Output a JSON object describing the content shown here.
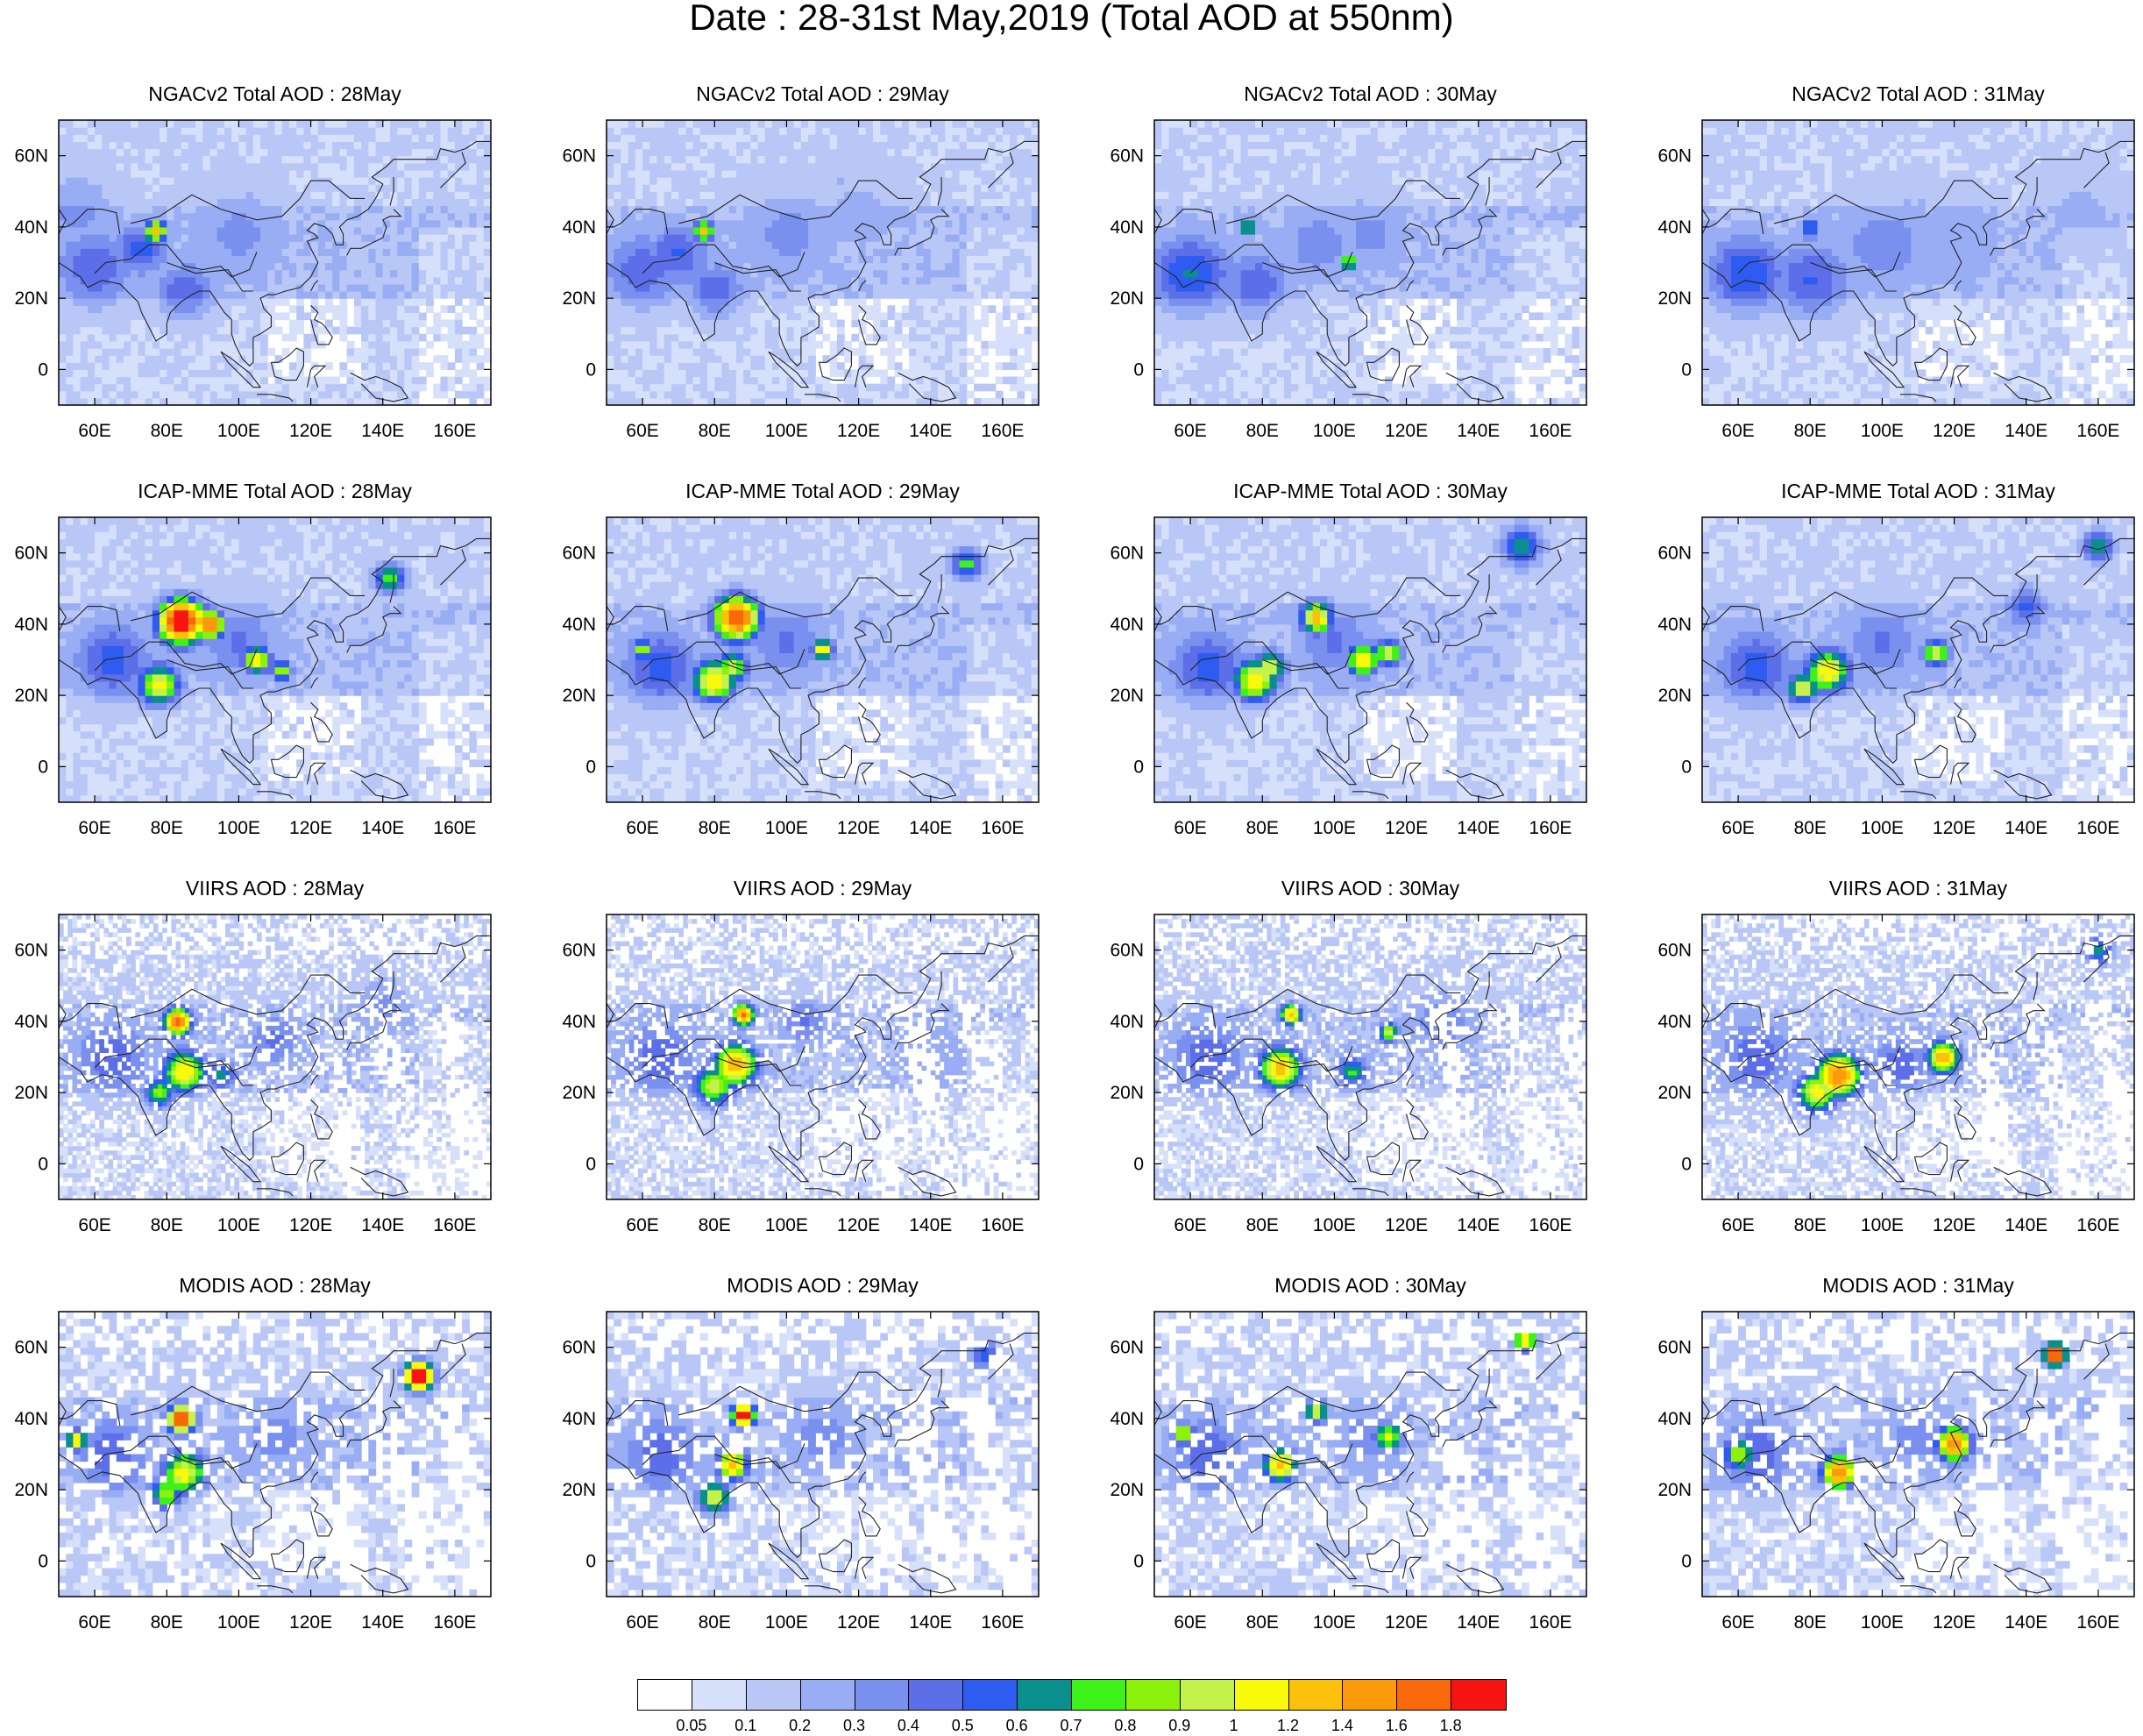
{
  "title": "Date : 28-31st May,2019 (Total AOD at 550nm)",
  "axes": {
    "lat_ticks": [
      "60N",
      "40N",
      "20N",
      "0"
    ],
    "lat_values": [
      60,
      40,
      20,
      0
    ],
    "lon_ticks": [
      "60E",
      "80E",
      "100E",
      "120E",
      "140E",
      "160E"
    ],
    "lon_values": [
      60,
      80,
      100,
      120,
      140,
      160
    ],
    "lon_range": [
      50,
      170
    ],
    "lat_range": [
      -10,
      70
    ]
  },
  "rows": [
    {
      "product": "NGACv2 Total AOD",
      "dataset_key": "ngac"
    },
    {
      "product": "ICAP-MME Total AOD",
      "dataset_key": "icap"
    },
    {
      "product": "VIIRS AOD",
      "dataset_key": "viirs"
    },
    {
      "product": "MODIS AOD",
      "dataset_key": "modis"
    }
  ],
  "dates": [
    "28May",
    "29May",
    "30May",
    "31May"
  ],
  "panel_titles": [
    [
      "NGACv2 Total AOD : 28May",
      "NGACv2 Total AOD : 29May",
      "NGACv2 Total AOD : 30May",
      "NGACv2 Total AOD : 31May"
    ],
    [
      "ICAP-MME Total AOD : 28May",
      "ICAP-MME Total AOD : 29May",
      "ICAP-MME Total AOD : 30May",
      "ICAP-MME Total AOD : 31May"
    ],
    [
      "VIIRS AOD : 28May",
      "VIIRS AOD : 29May",
      "VIIRS AOD : 30May",
      "VIIRS AOD : 31May"
    ],
    [
      "MODIS AOD : 28May",
      "MODIS AOD : 29May",
      "MODIS AOD : 30May",
      "MODIS AOD : 31May"
    ]
  ],
  "colorbar": {
    "labels": [
      "0.05",
      "0.1",
      "0.2",
      "0.3",
      "0.4",
      "0.5",
      "0.6",
      "0.7",
      "0.8",
      "0.9",
      "1",
      "1.2",
      "1.4",
      "1.6",
      "1.8"
    ],
    "colors": [
      "#ffffff",
      "#d7e0fb",
      "#b9c7f7",
      "#98adf4",
      "#7a90ef",
      "#5c6fe9",
      "#2f5cf0",
      "#0a8f8f",
      "#3cf218",
      "#8cf20c",
      "#c4f24b",
      "#f9f90a",
      "#fcc10a",
      "#fb9a0a",
      "#f9680a",
      "#f91414"
    ]
  },
  "hotspots": {
    "ngac": [
      [
        [
          77,
          39,
          2.0,
          0.95
        ],
        [
          73,
          34,
          5,
          0.35
        ],
        [
          60,
          28,
          8,
          0.3
        ],
        [
          85,
          22,
          6,
          0.3
        ],
        [
          100,
          38,
          10,
          0.18
        ],
        [
          55,
          45,
          8,
          0.18
        ]
      ],
      [
        [
          77,
          39,
          1.8,
          0.85
        ],
        [
          70,
          33,
          6,
          0.3
        ],
        [
          60,
          28,
          8,
          0.3
        ],
        [
          80,
          22,
          6,
          0.3
        ],
        [
          100,
          38,
          10,
          0.18
        ],
        [
          120,
          45,
          10,
          0.12
        ]
      ],
      [
        [
          76,
          40,
          1.5,
          0.65
        ],
        [
          104,
          30,
          1.6,
          0.65
        ],
        [
          60,
          27,
          8,
          0.4
        ],
        [
          78,
          24,
          7,
          0.3
        ],
        [
          95,
          35,
          8,
          0.2
        ],
        [
          110,
          38,
          8,
          0.18
        ]
      ],
      [
        [
          80,
          40,
          2.0,
          0.45
        ],
        [
          62,
          27,
          8,
          0.38
        ],
        [
          80,
          25,
          8,
          0.32
        ],
        [
          100,
          35,
          10,
          0.2
        ],
        [
          120,
          35,
          10,
          0.15
        ],
        [
          155,
          45,
          8,
          0.12
        ]
      ]
    ],
    "icap": [
      [
        [
          84,
          41,
          4,
          1.7
        ],
        [
          92,
          40,
          2.5,
          1.2
        ],
        [
          78,
          23,
          4,
          0.75
        ],
        [
          105,
          30,
          2.5,
          0.8
        ],
        [
          112,
          27,
          2,
          0.7
        ],
        [
          142,
          53,
          3,
          0.6
        ],
        [
          65,
          30,
          8,
          0.35
        ],
        [
          100,
          35,
          8,
          0.25
        ]
      ],
      [
        [
          86,
          42,
          4,
          1.4
        ],
        [
          80,
          24,
          4,
          0.85
        ],
        [
          85,
          28,
          3,
          0.7
        ],
        [
          110,
          33,
          2,
          0.8
        ],
        [
          150,
          57,
          3,
          0.55
        ],
        [
          60,
          33,
          2,
          0.6
        ],
        [
          65,
          28,
          8,
          0.35
        ],
        [
          100,
          35,
          8,
          0.25
        ]
      ],
      [
        [
          95,
          42,
          3,
          0.9
        ],
        [
          78,
          24,
          4,
          0.8
        ],
        [
          82,
          28,
          3,
          0.75
        ],
        [
          108,
          30,
          3,
          0.8
        ],
        [
          115,
          32,
          2.5,
          0.75
        ],
        [
          152,
          62,
          4,
          0.5
        ],
        [
          65,
          28,
          8,
          0.35
        ],
        [
          100,
          35,
          8,
          0.25
        ]
      ],
      [
        [
          85,
          27,
          4,
          0.85
        ],
        [
          78,
          22,
          3,
          0.7
        ],
        [
          115,
          32,
          2.5,
          0.75
        ],
        [
          160,
          62,
          3,
          0.5
        ],
        [
          140,
          45,
          4,
          0.35
        ],
        [
          65,
          28,
          8,
          0.35
        ],
        [
          100,
          35,
          8,
          0.25
        ]
      ]
    ],
    "viirs": [
      [
        [
          83,
          40,
          2.5,
          1.3
        ],
        [
          85,
          26,
          4,
          0.85
        ],
        [
          78,
          20,
          3,
          0.6
        ],
        [
          95,
          25,
          3,
          0.45
        ],
        [
          110,
          35,
          6,
          0.25
        ],
        [
          65,
          30,
          8,
          0.3
        ],
        [
          140,
          45,
          6,
          0.2
        ]
      ],
      [
        [
          88,
          42,
          2,
          1.2
        ],
        [
          86,
          28,
          4,
          1.0
        ],
        [
          80,
          22,
          4,
          0.7
        ],
        [
          105,
          40,
          5,
          0.25
        ],
        [
          65,
          30,
          8,
          0.3
        ],
        [
          140,
          30,
          8,
          0.15
        ]
      ],
      [
        [
          88,
          42,
          2,
          1.0
        ],
        [
          85,
          27,
          4,
          0.95
        ],
        [
          115,
          37,
          2,
          0.7
        ],
        [
          105,
          26,
          3,
          0.5
        ],
        [
          65,
          30,
          8,
          0.3
        ],
        [
          130,
          40,
          8,
          0.2
        ]
      ],
      [
        [
          88,
          25,
          4,
          1.15
        ],
        [
          82,
          20,
          4,
          0.8
        ],
        [
          117,
          30,
          3,
          1.0
        ],
        [
          160,
          60,
          3,
          0.5
        ],
        [
          65,
          30,
          8,
          0.3
        ],
        [
          105,
          28,
          6,
          0.3
        ]
      ]
    ],
    "modis": [
      [
        [
          84,
          40,
          2.5,
          1.5
        ],
        [
          150,
          52,
          2.5,
          1.85
        ],
        [
          55,
          34,
          2,
          0.8
        ],
        [
          85,
          25,
          4,
          0.8
        ],
        [
          80,
          19,
          3,
          0.7
        ],
        [
          65,
          30,
          8,
          0.3
        ],
        [
          110,
          35,
          8,
          0.2
        ]
      ],
      [
        [
          88,
          41,
          2,
          1.6
        ],
        [
          85,
          27,
          3,
          0.9
        ],
        [
          80,
          18,
          3,
          0.8
        ],
        [
          65,
          30,
          8,
          0.3
        ],
        [
          110,
          35,
          8,
          0.2
        ],
        [
          155,
          58,
          3,
          0.4
        ]
      ],
      [
        [
          85,
          27,
          3,
          1.0
        ],
        [
          58,
          36,
          2,
          0.7
        ],
        [
          95,
          42,
          2,
          0.8
        ],
        [
          115,
          35,
          2.5,
          0.7
        ],
        [
          153,
          62,
          2,
          1.0
        ],
        [
          65,
          30,
          8,
          0.3
        ],
        [
          110,
          35,
          8,
          0.2
        ]
      ],
      [
        [
          88,
          25,
          3,
          1.25
        ],
        [
          120,
          33,
          3,
          1.2
        ],
        [
          148,
          58,
          2,
          1.7
        ],
        [
          60,
          30,
          3,
          0.6
        ],
        [
          65,
          30,
          8,
          0.3
        ],
        [
          110,
          35,
          8,
          0.2
        ]
      ]
    ]
  }
}
